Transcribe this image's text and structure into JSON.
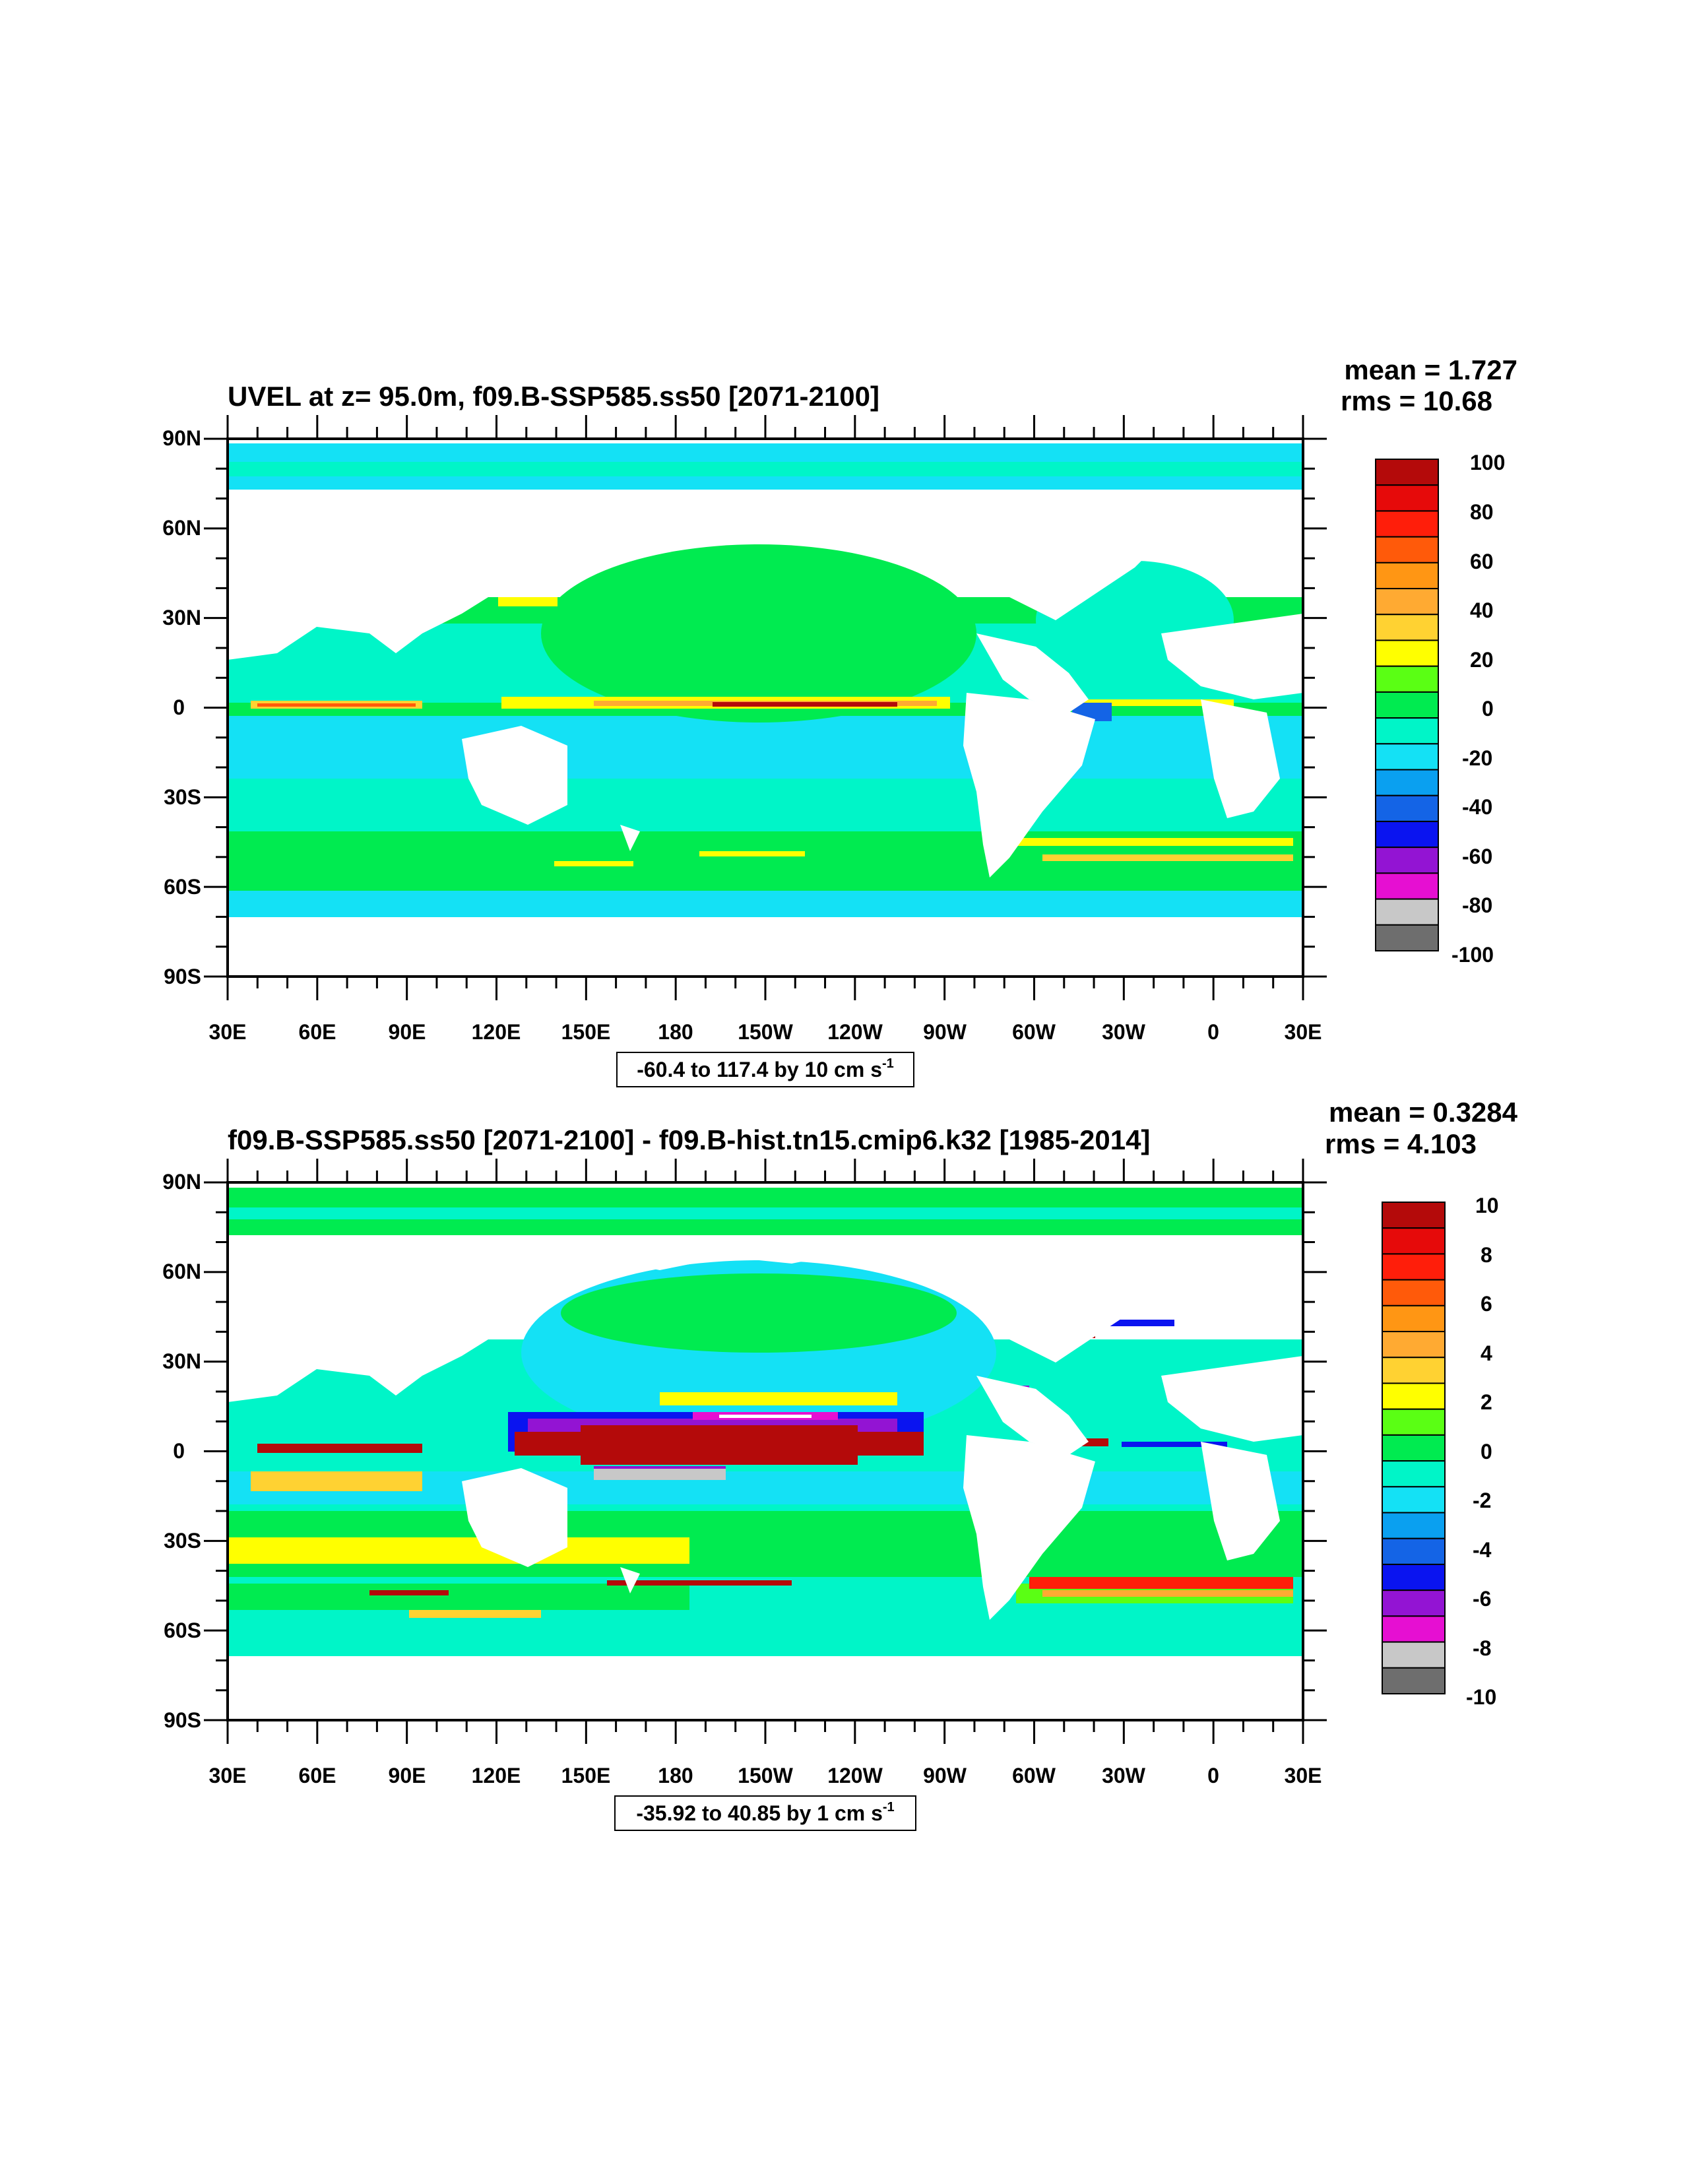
{
  "colors": {
    "scale": [
      "#6e6e6e",
      "#c8c8c8",
      "#e60fd2",
      "#9314d3",
      "#0a14f0",
      "#1464e6",
      "#0aa0f0",
      "#14e1f5",
      "#00f5c8",
      "#00eb50",
      "#5aff14",
      "#ffff00",
      "#ffd232",
      "#ffaa32",
      "#ff9614",
      "#ff5a0a",
      "#ff1e0a",
      "#e60a0a",
      "#b40a0a"
    ],
    "land": "#ffffff"
  },
  "panels": [
    {
      "title": "UVEL at z=  95.0m, f09.B-SSP585.ss50 [2071-2100]",
      "mean": "mean = 1.727",
      "rms": "rms = 10.68",
      "lat_labels": [
        "90N",
        "60N",
        "30N",
        "0",
        "30S",
        "60S",
        "90S"
      ],
      "lon_labels": [
        "30E",
        "60E",
        "90E",
        "120E",
        "150E",
        "180",
        "150W",
        "120W",
        "90W",
        "60W",
        "30W",
        "0",
        "30E"
      ],
      "colorbar_labels": [
        "100",
        "80",
        "60",
        "40",
        "20",
        "0",
        "-20",
        "-40",
        "-60",
        "-80",
        "-100"
      ],
      "range_text": "-60.4 to 117.4 by 10 cm s",
      "range_sup": "-1"
    },
    {
      "title": "f09.B-SSP585.ss50 [2071-2100] - f09.B-hist.tn15.cmip6.k32 [1985-2014]",
      "mean": "mean = 0.3284",
      "rms": "rms = 4.103",
      "lat_labels": [
        "90N",
        "60N",
        "30N",
        "0",
        "30S",
        "60S",
        "90S"
      ],
      "lon_labels": [
        "30E",
        "60E",
        "90E",
        "120E",
        "150E",
        "180",
        "150W",
        "120W",
        "90W",
        "60W",
        "30W",
        "0",
        "30E"
      ],
      "colorbar_labels": [
        "10",
        "8",
        "6",
        "4",
        "2",
        "0",
        "-2",
        "-4",
        "-6",
        "-8",
        "-10"
      ],
      "range_text": "-35.92 to 40.85 by 1 cm s",
      "range_sup": "-1"
    }
  ]
}
